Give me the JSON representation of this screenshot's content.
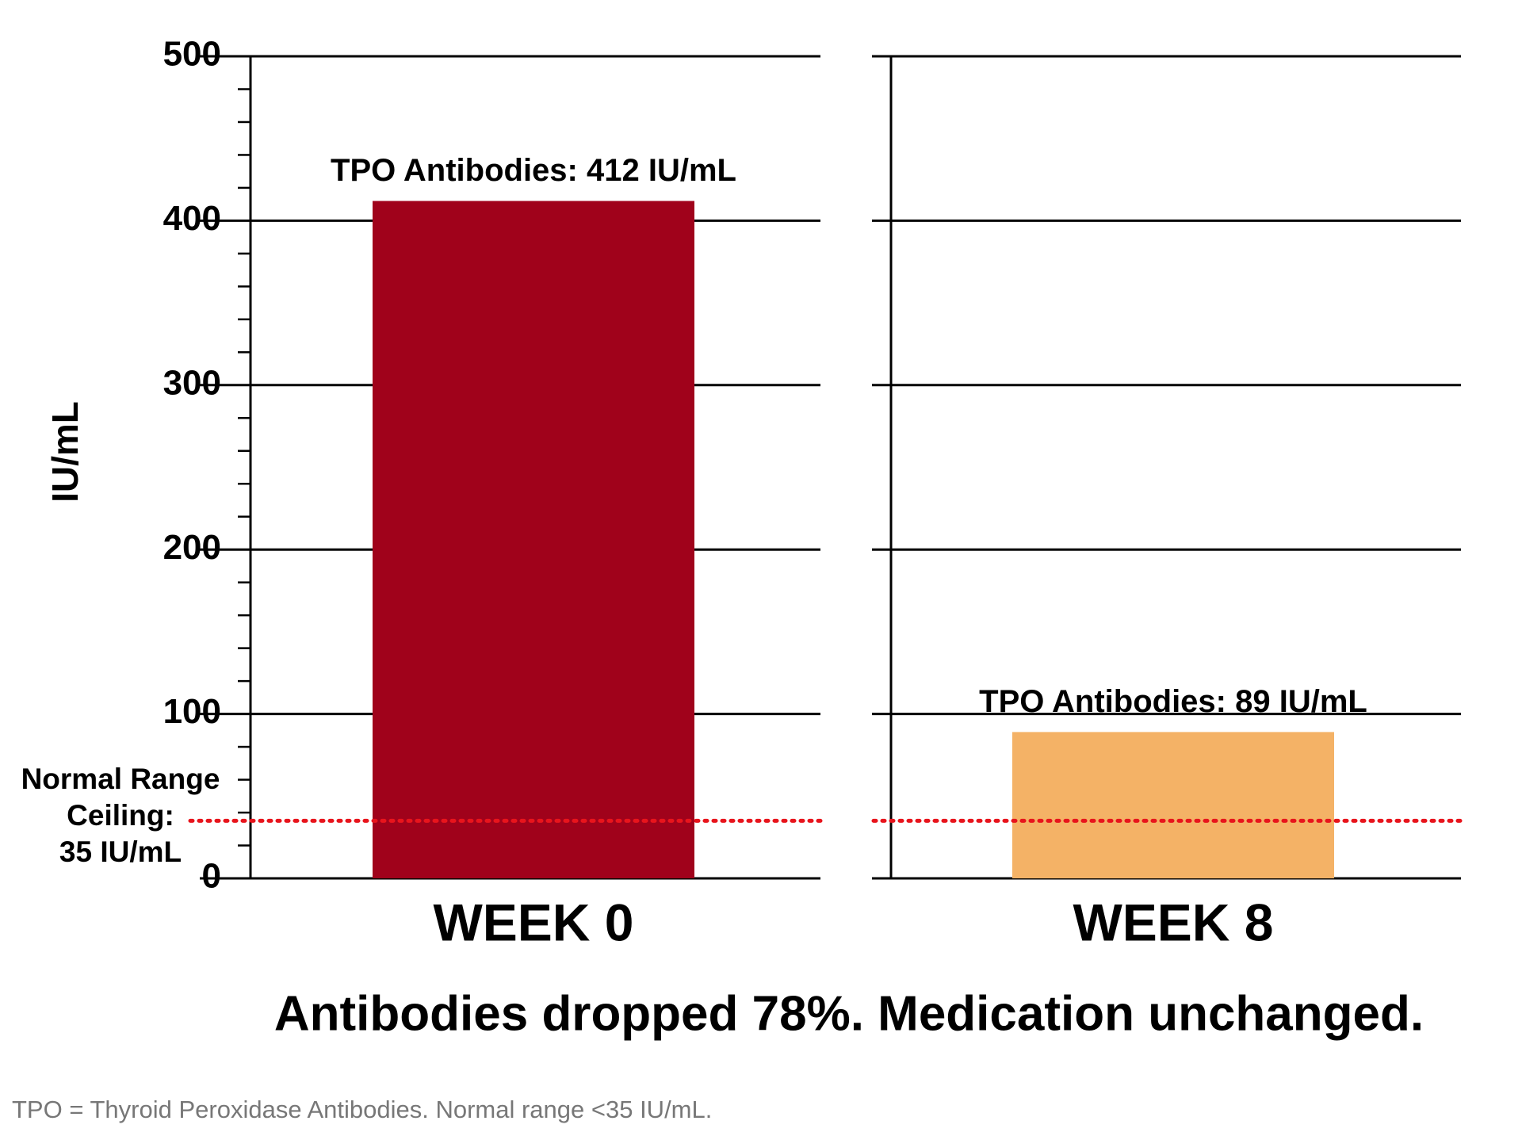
{
  "chart_data": {
    "type": "bar",
    "ylabel": "IU/mL",
    "categories": [
      "WEEK 0",
      "WEEK 8"
    ],
    "values": [
      412,
      89
    ],
    "value_labels": [
      "TPO Antibodies: 412 IU/mL",
      "TPO Antibodies: 89 IU/mL"
    ],
    "colors": [
      "#a0021b",
      "#f4b266"
    ],
    "ylim": [
      0,
      500
    ],
    "yticks": [
      0,
      100,
      200,
      300,
      400,
      500
    ],
    "yminorticks": [
      20,
      40,
      60,
      80,
      120,
      140,
      160,
      180,
      220,
      240,
      260,
      280,
      320,
      340,
      360,
      380,
      420,
      440,
      460,
      480
    ],
    "grid": true,
    "reference_line": {
      "value": 35,
      "color": "#e8141c",
      "label_lines": [
        "Normal Range",
        "Ceiling:",
        "35 IU/mL"
      ]
    },
    "caption": "Antibodies dropped 78%. Medication unchanged.",
    "footnote": "TPO = Thyroid Peroxidase Antibodies. Normal range <35 IU/mL."
  }
}
